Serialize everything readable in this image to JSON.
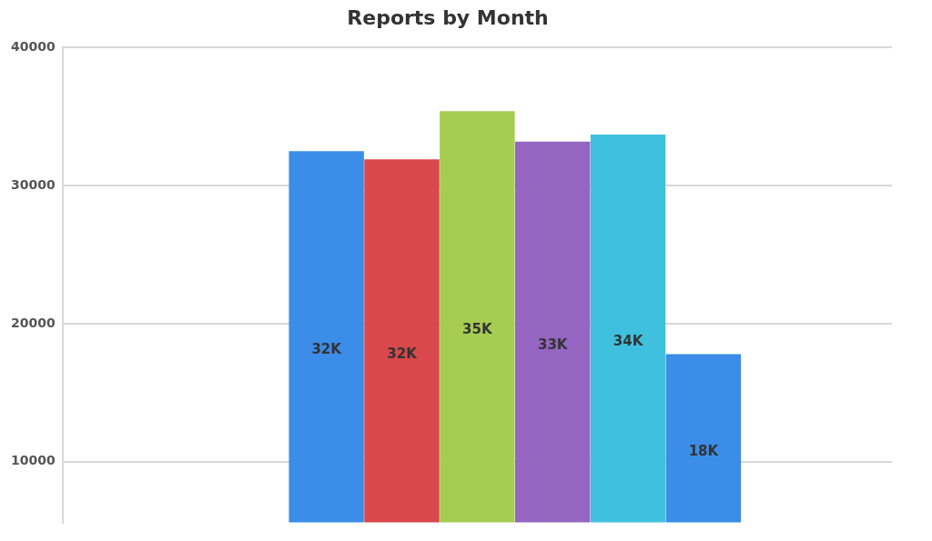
{
  "chart_data": {
    "type": "bar",
    "title": "Reports by Month",
    "categories": [
      null,
      null,
      null,
      null,
      null,
      null,
      null,
      null,
      null,
      null,
      null
    ],
    "values": [
      null,
      null,
      null,
      32500,
      31900,
      35400,
      33200,
      33700,
      17800,
      null,
      null
    ],
    "value_labels": [
      null,
      null,
      null,
      "32K",
      "32K",
      "35K",
      "33K",
      "34K",
      "18K",
      null,
      null
    ],
    "colors": [
      "#3b8de8",
      "#3b8de8",
      "#3b8de8",
      "#3b8de8",
      "#d9484a",
      "#a6cc52",
      "#9466c2",
      "#3fc0de",
      "#3b8de8",
      "#3b8de8",
      "#3b8de8"
    ],
    "ylim": [
      5600,
      40000
    ],
    "yticks": [
      10000,
      20000,
      30000,
      40000
    ],
    "grid": "y",
    "legend": false
  }
}
